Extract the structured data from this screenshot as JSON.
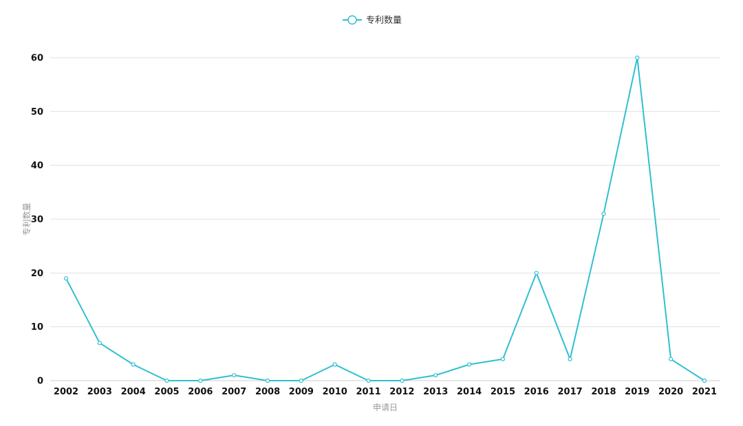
{
  "chart_data": {
    "type": "line",
    "title": "",
    "xlabel": "申请日",
    "ylabel": "专利数量",
    "legend": {
      "position": "top-center",
      "entries": [
        "专利数量"
      ]
    },
    "grid": true,
    "ylim": [
      0,
      60
    ],
    "yticks": [
      0,
      10,
      20,
      30,
      40,
      50,
      60
    ],
    "categories": [
      "2002",
      "2003",
      "2004",
      "2005",
      "2006",
      "2007",
      "2008",
      "2009",
      "2010",
      "2011",
      "2012",
      "2013",
      "2014",
      "2015",
      "2016",
      "2017",
      "2018",
      "2019",
      "2020",
      "2021"
    ],
    "series": [
      {
        "name": "专利数量",
        "color": "#2ebfd1",
        "values": [
          19,
          7,
          3,
          0,
          0,
          1,
          0,
          0,
          3,
          0,
          0,
          1,
          3,
          4,
          20,
          4,
          31,
          60,
          4,
          0
        ]
      }
    ]
  }
}
